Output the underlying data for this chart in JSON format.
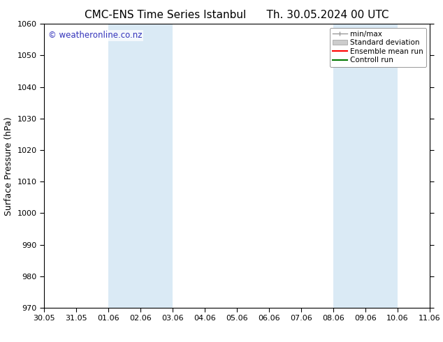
{
  "title_left": "CMC-ENS Time Series Istanbul",
  "title_right": "Th. 30.05.2024 00 UTC",
  "ylabel": "Surface Pressure (hPa)",
  "ylim": [
    970,
    1060
  ],
  "yticks": [
    970,
    980,
    990,
    1000,
    1010,
    1020,
    1030,
    1040,
    1050,
    1060
  ],
  "xlim_start": 0,
  "xlim_end": 12,
  "xtick_labels": [
    "30.05",
    "31.05",
    "01.06",
    "02.06",
    "03.06",
    "04.06",
    "05.06",
    "06.06",
    "07.06",
    "08.06",
    "09.06",
    "10.06",
    "11.06"
  ],
  "xtick_positions": [
    0,
    1,
    2,
    3,
    4,
    5,
    6,
    7,
    8,
    9,
    10,
    11,
    12
  ],
  "shaded_regions": [
    {
      "xmin": 2,
      "xmax": 4,
      "color": "#daeaf5"
    },
    {
      "xmin": 9,
      "xmax": 11,
      "color": "#daeaf5"
    }
  ],
  "watermark": "© weatheronline.co.nz",
  "watermark_color": "#3333bb",
  "background_color": "#ffffff",
  "plot_bg_color": "#ffffff",
  "legend_items": [
    {
      "label": "min/max",
      "color": "#999999",
      "style": "line_with_cap"
    },
    {
      "label": "Standard deviation",
      "color": "#cccccc",
      "style": "bar"
    },
    {
      "label": "Ensemble mean run",
      "color": "#ff0000",
      "style": "line"
    },
    {
      "label": "Controll run",
      "color": "#007700",
      "style": "line"
    }
  ],
  "title_fontsize": 11,
  "axis_fontsize": 9,
  "tick_fontsize": 8,
  "watermark_fontsize": 8.5,
  "legend_fontsize": 7.5
}
